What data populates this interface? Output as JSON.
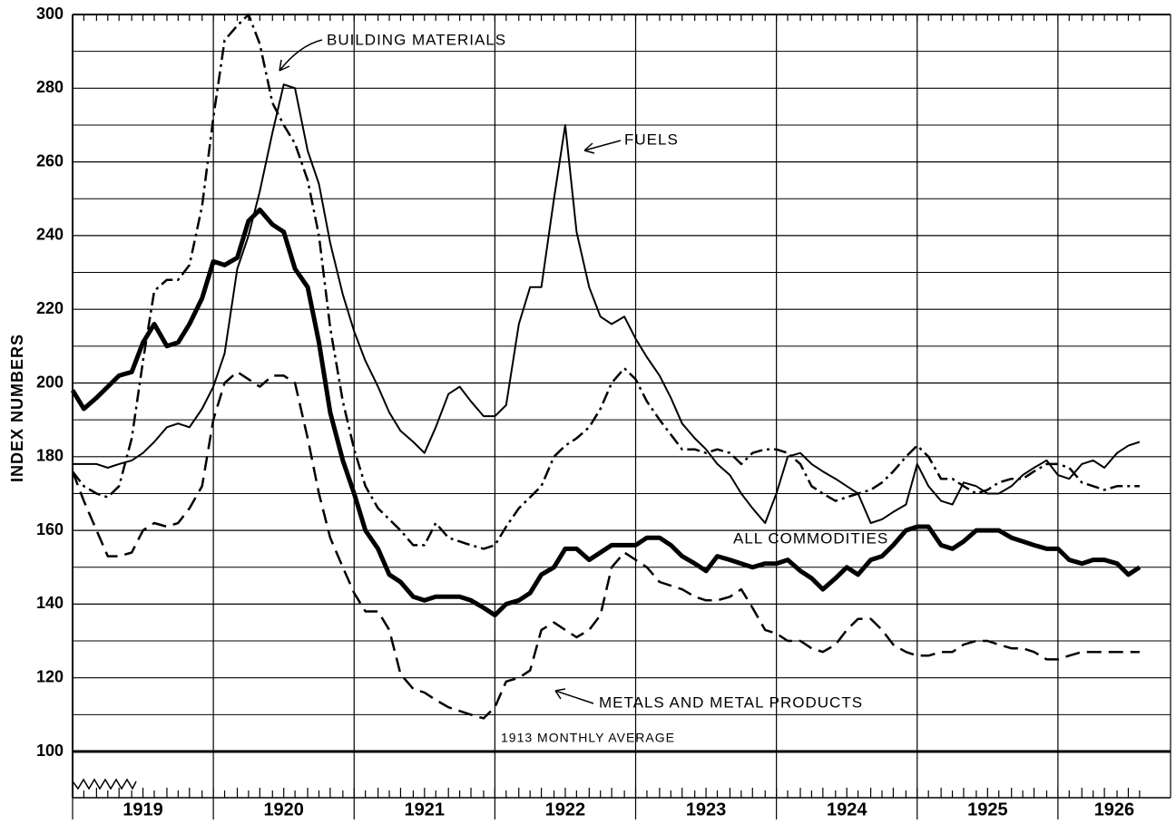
{
  "chart_data": {
    "type": "line",
    "y_label": "INDEX NUMBERS",
    "annotations": [
      "BUILDING MATERIALS",
      "FUELS",
      "ALL COMMODITIES",
      "METALS AND METAL PRODUCTS",
      "1913 MONTHLY AVERAGE"
    ],
    "x": [
      1919.0,
      1919.08,
      1919.17,
      1919.25,
      1919.33,
      1919.42,
      1919.5,
      1919.58,
      1919.67,
      1919.75,
      1919.83,
      1919.92,
      1920.0,
      1920.08,
      1920.17,
      1920.25,
      1920.33,
      1920.42,
      1920.5,
      1920.58,
      1920.67,
      1920.75,
      1920.83,
      1920.92,
      1921.0,
      1921.08,
      1921.17,
      1921.25,
      1921.33,
      1921.42,
      1921.5,
      1921.58,
      1921.67,
      1921.75,
      1921.83,
      1921.92,
      1922.0,
      1922.08,
      1922.17,
      1922.25,
      1922.33,
      1922.42,
      1922.5,
      1922.58,
      1922.67,
      1922.75,
      1922.83,
      1922.92,
      1923.0,
      1923.08,
      1923.17,
      1923.25,
      1923.33,
      1923.42,
      1923.5,
      1923.58,
      1923.67,
      1923.75,
      1923.83,
      1923.92,
      1924.0,
      1924.08,
      1924.17,
      1924.25,
      1924.33,
      1924.42,
      1924.5,
      1924.58,
      1924.67,
      1924.75,
      1924.83,
      1924.92,
      1925.0,
      1925.08,
      1925.17,
      1925.25,
      1925.33,
      1925.42,
      1925.5,
      1925.58,
      1925.67,
      1925.75,
      1925.83,
      1925.92,
      1926.0,
      1926.08,
      1926.17,
      1926.25,
      1926.33,
      1926.42,
      1926.5,
      1926.58
    ],
    "series": [
      {
        "name": "ALL COMMODITIES",
        "color": "#000000",
        "width": 5,
        "dash": "solid",
        "values": [
          198,
          193,
          196,
          199,
          202,
          203,
          211,
          216,
          210,
          211,
          216,
          223,
          233,
          232,
          234,
          244,
          247,
          243,
          241,
          231,
          226,
          211,
          192,
          179,
          170,
          160,
          155,
          148,
          146,
          142,
          141,
          142,
          142,
          142,
          141,
          139,
          137,
          140,
          141,
          143,
          148,
          150,
          155,
          155,
          152,
          154,
          156,
          156,
          156,
          158,
          158,
          156,
          153,
          151,
          149,
          153,
          152,
          151,
          150,
          151,
          151,
          152,
          149,
          147,
          144,
          147,
          150,
          148,
          152,
          153,
          156,
          160,
          161,
          161,
          156,
          155,
          157,
          160,
          160,
          160,
          158,
          157,
          156,
          155,
          155,
          152,
          151,
          152,
          152,
          151,
          148,
          150
        ]
      },
      {
        "name": "FUELS",
        "color": "#000000",
        "width": 2,
        "dash": "solid",
        "values": [
          178,
          178,
          178,
          177,
          178,
          179,
          181,
          184,
          188,
          189,
          188,
          193,
          199,
          208,
          231,
          240,
          252,
          268,
          281,
          280,
          263,
          254,
          238,
          224,
          214,
          206,
          199,
          192,
          187,
          184,
          181,
          188,
          197,
          199,
          195,
          191,
          191,
          194,
          216,
          226,
          226,
          250,
          270,
          241,
          226,
          218,
          216,
          218,
          212,
          207,
          202,
          196,
          189,
          185,
          182,
          178,
          175,
          170,
          166,
          162,
          170,
          180,
          181,
          178,
          176,
          174,
          172,
          170,
          162,
          163,
          165,
          167,
          178,
          172,
          168,
          167,
          173,
          172,
          170,
          170,
          172,
          175,
          177,
          179,
          175,
          174,
          178,
          179,
          177,
          181,
          183,
          184
        ]
      },
      {
        "name": "BUILDING MATERIALS",
        "color": "#000000",
        "width": 2.5,
        "dash": "dashdot",
        "values": [
          176,
          172,
          170,
          169,
          172,
          185,
          206,
          225,
          228,
          228,
          232,
          248,
          272,
          293,
          297,
          300,
          292,
          276,
          270,
          265,
          255,
          240,
          215,
          195,
          182,
          172,
          166,
          163,
          160,
          156,
          156,
          162,
          158,
          157,
          156,
          155,
          156,
          161,
          166,
          169,
          172,
          180,
          183,
          185,
          188,
          193,
          200,
          204,
          201,
          195,
          190,
          186,
          182,
          182,
          181,
          182,
          181,
          178,
          181,
          182,
          182,
          181,
          178,
          172,
          170,
          168,
          169,
          170,
          171,
          173,
          176,
          180,
          183,
          180,
          174,
          174,
          172,
          170,
          171,
          173,
          174,
          174,
          176,
          178,
          178,
          177,
          173,
          172,
          171,
          172,
          172,
          172
        ]
      },
      {
        "name": "METALS AND METAL PRODUCTS",
        "color": "#000000",
        "width": 2.5,
        "dash": "dashed",
        "values": [
          176,
          168,
          160,
          153,
          153,
          154,
          160,
          162,
          161,
          162,
          166,
          172,
          190,
          200,
          203,
          201,
          199,
          202,
          202,
          200,
          185,
          170,
          158,
          150,
          143,
          138,
          138,
          133,
          121,
          117,
          116,
          114,
          112,
          111,
          110,
          109,
          112,
          119,
          120,
          122,
          133,
          135,
          133,
          131,
          133,
          137,
          150,
          154,
          152,
          150,
          146,
          145,
          144,
          142,
          141,
          141,
          142,
          144,
          139,
          133,
          132,
          130,
          130,
          128,
          127,
          129,
          133,
          136,
          136,
          133,
          129,
          127,
          126,
          126,
          127,
          127,
          129,
          130,
          130,
          129,
          128,
          128,
          127,
          125,
          125,
          126,
          127,
          127,
          127,
          127,
          127,
          127
        ]
      }
    ],
    "xlim": [
      1919,
      1926.8
    ],
    "xticks": [
      1919,
      1920,
      1921,
      1922,
      1923,
      1924,
      1925,
      1926
    ],
    "ylim": [
      100,
      300
    ],
    "yticks": [
      100,
      120,
      140,
      160,
      180,
      200,
      220,
      240,
      260,
      280,
      300
    ],
    "ygrid": [
      110,
      130,
      150,
      170,
      190,
      210,
      230,
      250,
      270,
      290
    ],
    "grid": true
  }
}
